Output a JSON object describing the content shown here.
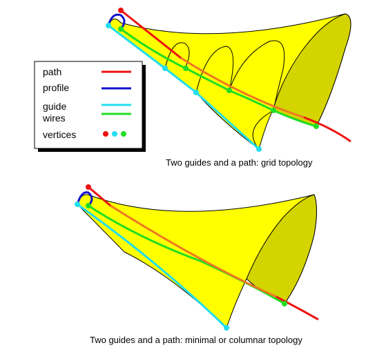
{
  "legend": {
    "items": [
      {
        "label": "path",
        "color": "#ee1111"
      },
      {
        "label": "profile",
        "color": "#1111cc"
      },
      {
        "label": "guide",
        "color": "#22ddee"
      },
      {
        "label": "wires",
        "color": "#22dd22"
      },
      {
        "label": "vertices",
        "dot_colors": [
          "#ee1111",
          "#22ddee",
          "#22dd22"
        ]
      }
    ]
  },
  "captions": {
    "top": "Two guides and a path: grid topology",
    "bottom": "Two guides and a path: minimal or columnar topology"
  },
  "colors": {
    "surface_fill": "#ffff00",
    "shaded_fill": "#d4d400",
    "path": "#ee1111",
    "path_over_surface": "#ee7722",
    "profile": "#1111cc",
    "guide": "#22ddee",
    "wire": "#22dd22",
    "outline": "#000000"
  }
}
